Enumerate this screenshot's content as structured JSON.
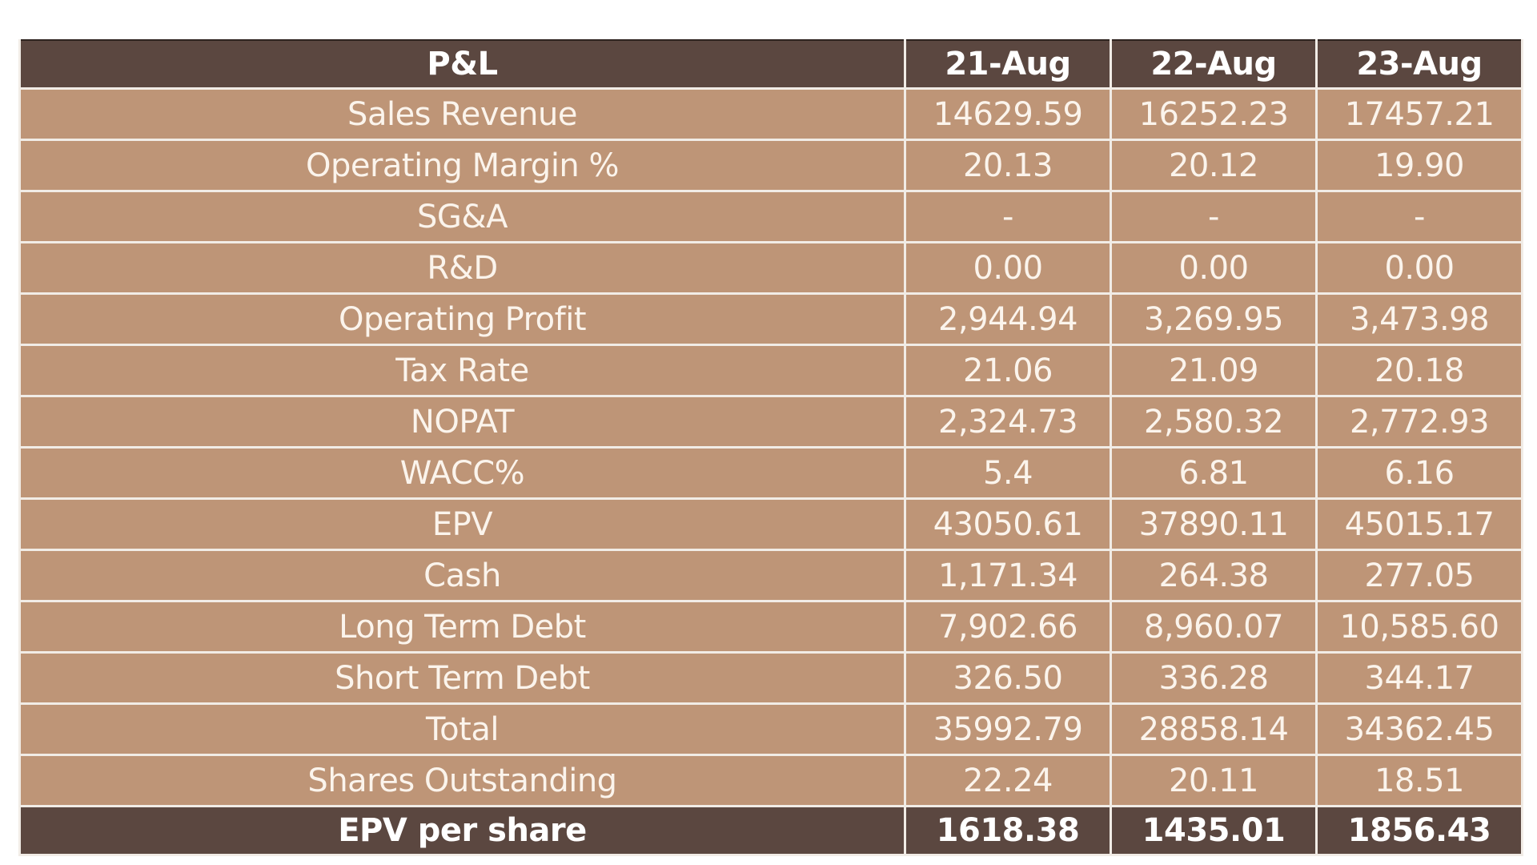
{
  "table": {
    "header": {
      "label": "P&L",
      "columns": [
        "21-Aug",
        "22-Aug",
        "23-Aug"
      ]
    },
    "rows": [
      {
        "label": "Sales Revenue",
        "values": [
          "14629.59",
          "16252.23",
          "17457.21"
        ]
      },
      {
        "label": "Operating Margin %",
        "values": [
          "20.13",
          "20.12",
          "19.90"
        ]
      },
      {
        "label": "SG&A",
        "values": [
          "-",
          "-",
          "-"
        ]
      },
      {
        "label": "R&D",
        "values": [
          "0.00",
          "0.00",
          "0.00"
        ]
      },
      {
        "label": "Operating Profit",
        "values": [
          "2,944.94",
          "3,269.95",
          "3,473.98"
        ]
      },
      {
        "label": "Tax Rate",
        "values": [
          "21.06",
          "21.09",
          "20.18"
        ]
      },
      {
        "label": "NOPAT",
        "values": [
          "2,324.73",
          "2,580.32",
          "2,772.93"
        ]
      },
      {
        "label": "WACC%",
        "values": [
          "5.4",
          "6.81",
          "6.16"
        ]
      },
      {
        "label": "EPV",
        "values": [
          "43050.61",
          "37890.11",
          "45015.17"
        ]
      },
      {
        "label": "Cash",
        "values": [
          "1,171.34",
          "264.38",
          "277.05"
        ]
      },
      {
        "label": "Long Term Debt",
        "values": [
          "7,902.66",
          "8,960.07",
          "10,585.60"
        ]
      },
      {
        "label": "Short Term Debt",
        "values": [
          "326.50",
          "336.28",
          "344.17"
        ]
      },
      {
        "label": "Total",
        "values": [
          "35992.79",
          "28858.14",
          "34362.45"
        ]
      },
      {
        "label": "Shares Outstanding",
        "values": [
          "22.24",
          "20.11",
          "18.51"
        ]
      }
    ],
    "footer": {
      "label": "EPV per share",
      "values": [
        "1618.38",
        "1435.01",
        "1856.43"
      ]
    },
    "colors": {
      "header_bg": "#5b4740",
      "body_bg": "#be9577",
      "text": "#fbf4ec",
      "grid": "#f1ece6"
    }
  }
}
